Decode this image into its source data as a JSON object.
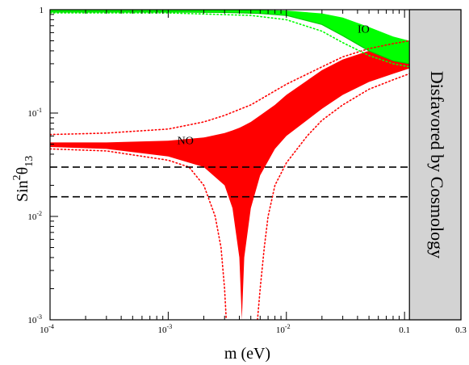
{
  "chart_data": {
    "type": "area",
    "xlabel": "m (eV)",
    "ylabel": {
      "base": "Sin",
      "sup": "2",
      "theta": "θ",
      "sub": "13"
    },
    "x_scale": "log",
    "y_scale": "log",
    "xlim": [
      0.0001,
      0.3
    ],
    "ylim": [
      0.001,
      1
    ],
    "x_ticks": [
      {
        "value": 0.0001,
        "base": "10",
        "exp": "-4"
      },
      {
        "value": 0.001,
        "base": "10",
        "exp": "-3"
      },
      {
        "value": 0.01,
        "base": "10",
        "exp": "-2"
      },
      {
        "value": 0.1,
        "text": "0.1"
      },
      {
        "value": 0.3,
        "text": "0.3"
      }
    ],
    "y_ticks": [
      {
        "value": 0.001,
        "base": "10",
        "exp": "-3"
      },
      {
        "value": 0.01,
        "base": "10",
        "exp": "-2"
      },
      {
        "value": 0.1,
        "base": "10",
        "exp": "-1"
      },
      {
        "value": 1,
        "text": "1"
      }
    ],
    "colors": {
      "NO": "#ff0000",
      "IO": "#00ff00",
      "disfavored": "#d3d3d3"
    },
    "series": [
      {
        "name": "IO",
        "kind": "band",
        "x": [
          0.0001,
          0.001,
          0.003,
          0.006,
          0.01,
          0.02,
          0.03,
          0.05,
          0.08,
          0.11
        ],
        "upper": [
          1.0,
          1.0,
          1.0,
          0.99,
          0.98,
          0.92,
          0.84,
          0.68,
          0.55,
          0.5
        ],
        "lower": [
          0.95,
          0.95,
          0.94,
          0.92,
          0.88,
          0.72,
          0.56,
          0.4,
          0.32,
          0.3
        ]
      },
      {
        "name": "NO",
        "kind": "band",
        "x": [
          0.0001,
          0.0003,
          0.001,
          0.002,
          0.003,
          0.0035,
          0.004,
          0.0042,
          0.0044,
          0.005,
          0.006,
          0.008,
          0.01,
          0.02,
          0.03,
          0.05,
          0.08,
          0.11
        ],
        "upper": [
          0.052,
          0.052,
          0.054,
          0.058,
          0.064,
          0.068,
          0.072,
          0.074,
          0.076,
          0.082,
          0.095,
          0.12,
          0.15,
          0.26,
          0.33,
          0.4,
          0.45,
          0.49
        ],
        "lower": [
          0.047,
          0.045,
          0.038,
          0.03,
          0.02,
          0.012,
          0.004,
          0.001,
          0.004,
          0.012,
          0.025,
          0.045,
          0.06,
          0.11,
          0.15,
          0.2,
          0.24,
          0.27
        ]
      },
      {
        "name": "NO",
        "kind": "dotted-bound",
        "x": [
          0.0001,
          0.0003,
          0.001,
          0.002,
          0.003,
          0.005,
          0.007,
          0.01,
          0.02,
          0.03,
          0.05,
          0.08,
          0.11
        ],
        "upper": [
          0.062,
          0.064,
          0.07,
          0.082,
          0.095,
          0.12,
          0.15,
          0.19,
          0.28,
          0.35,
          0.42,
          0.47,
          0.5
        ]
      },
      {
        "name": "NO",
        "kind": "dotted-bound",
        "x": [
          0.0001,
          0.0003,
          0.001,
          0.0015,
          0.002,
          0.0025,
          0.0028,
          0.003,
          0.0031
        ],
        "y": [
          0.045,
          0.043,
          0.035,
          0.03,
          0.02,
          0.01,
          0.005,
          0.002,
          0.001
        ]
      },
      {
        "name": "NO",
        "kind": "dotted-bound",
        "x": [
          0.0057,
          0.006,
          0.0065,
          0.007,
          0.008,
          0.01,
          0.015,
          0.02,
          0.03,
          0.05,
          0.08,
          0.11
        ],
        "y": [
          0.001,
          0.002,
          0.005,
          0.01,
          0.02,
          0.033,
          0.06,
          0.085,
          0.12,
          0.17,
          0.21,
          0.24
        ]
      },
      {
        "name": "IO",
        "kind": "dotted-bound",
        "x": [
          0.0001,
          0.001,
          0.005,
          0.01,
          0.02,
          0.03,
          0.05,
          0.08,
          0.11
        ],
        "y": [
          0.93,
          0.93,
          0.88,
          0.8,
          0.62,
          0.48,
          0.36,
          0.3,
          0.28
        ]
      }
    ],
    "reference_lines": [
      {
        "y": 0.03,
        "style": "dashed",
        "color": "#000000"
      },
      {
        "y": 0.0155,
        "style": "dashed",
        "color": "#000000"
      }
    ],
    "annotations": [
      {
        "text": "IO",
        "x": 0.045,
        "y": 0.6
      },
      {
        "text": "NO",
        "x": 0.0014,
        "y": 0.05
      }
    ],
    "disfavored_region": {
      "x_from": 0.11,
      "x_to": 0.3,
      "text": "Disfavored  by  Cosmology"
    }
  }
}
